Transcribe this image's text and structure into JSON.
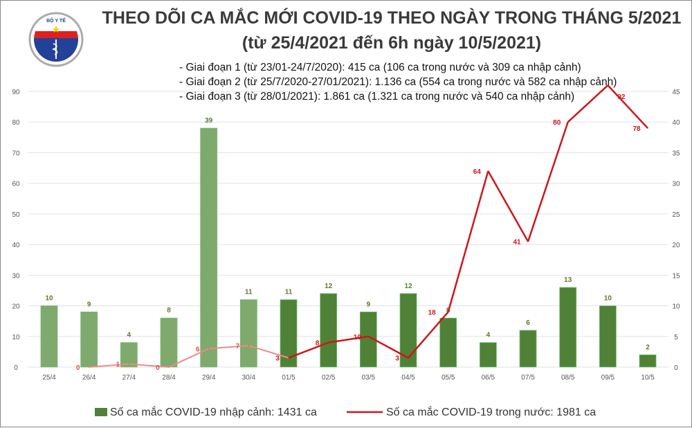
{
  "header": {
    "title": "THEO DÕI CA MẮC MỚI COVID-19 THEO NGÀY TRONG THÁNG 5/2021",
    "subtitle": "(từ 25/4/2021 đến 6h ngày 10/5/2021)",
    "logo_text": "BỘ Y TẾ MINISTRY OF HEALTH"
  },
  "notes": [
    "- Giai đoạn 1 (từ 23/01-24/7/2020): 415 ca (106 ca trong nước và 309 ca nhập cảnh)",
    "- Giai đoạn 2 (từ 25/7/2020-27/01/2021): 1.136 ca (554 ca trong nước và 582 ca nhập cảnh)",
    "- Giai đoạn 3 (từ 28/01/2021): 1.861 ca (1.321 ca trong nước và 540 ca nhập cảnh)"
  ],
  "chart_data": {
    "type": "bar+line",
    "categories": [
      "25/4",
      "26/4",
      "27/4",
      "28/4",
      "29/4",
      "30/4",
      "01/5",
      "02/5",
      "03/5",
      "04/5",
      "05/5",
      "06/5",
      "07/5",
      "08/5",
      "09/5",
      "10/5"
    ],
    "series": [
      {
        "name": "Số ca mắc COVID-19 nhập cảnh: 1431 ca",
        "type": "bar",
        "axis": "right",
        "values": [
          10,
          9,
          4,
          8,
          39,
          11,
          11,
          12,
          9,
          12,
          8,
          4,
          6,
          13,
          10,
          2
        ],
        "color": "#4f8236",
        "color_faded": "#7fa96d"
      },
      {
        "name": "Số ca mắc COVID-19 trong nước: 1981 ca",
        "type": "line",
        "axis": "left",
        "values": [
          null,
          0,
          1,
          0,
          6,
          7,
          3,
          8,
          10,
          3,
          18,
          64,
          41,
          80,
          92,
          78
        ],
        "color": "#d0141b",
        "color_faded": "#ef8a8a"
      }
    ],
    "left_axis": {
      "range": [
        0,
        90
      ],
      "ticks": [
        0,
        10,
        20,
        30,
        40,
        50,
        60,
        70,
        80,
        90
      ]
    },
    "right_axis": {
      "range": [
        0,
        45
      ],
      "ticks": [
        0,
        5,
        10,
        15,
        20,
        25,
        30,
        35,
        40,
        45
      ]
    },
    "grid": true,
    "legend": "bottom"
  }
}
